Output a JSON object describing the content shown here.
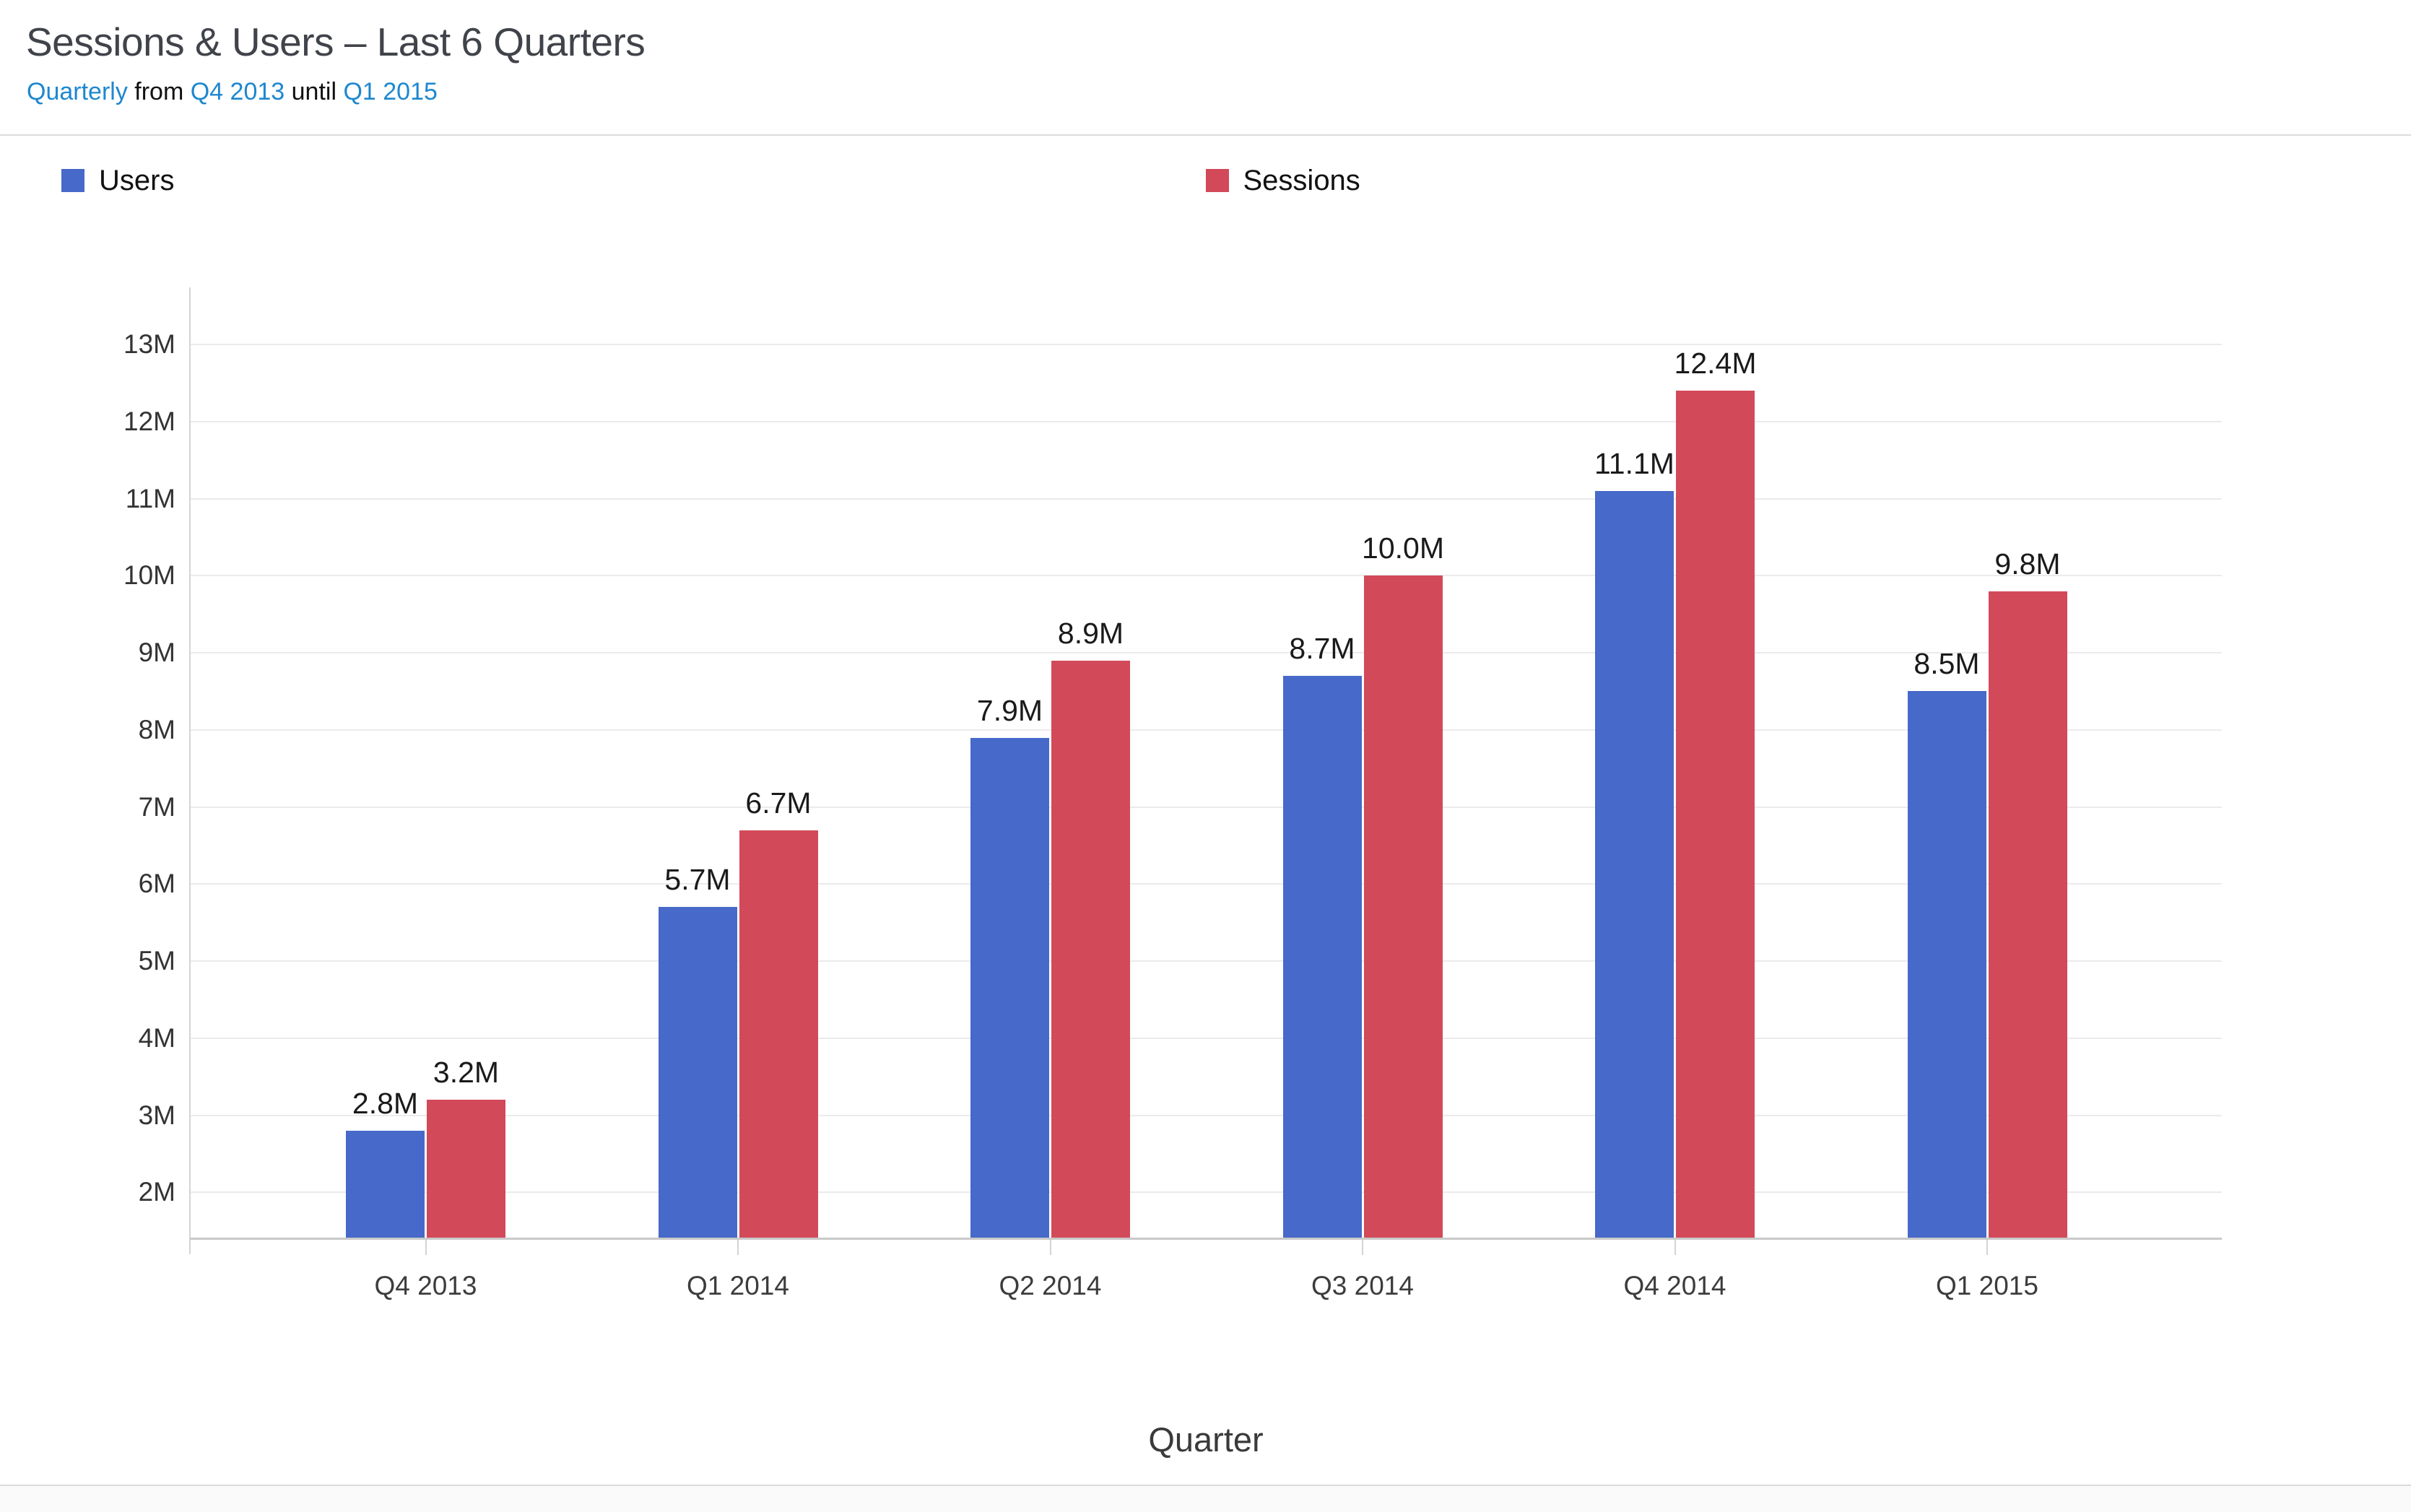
{
  "header": {
    "title": "Sessions & Users – Last 6 Quarters",
    "subtitle_parts": [
      {
        "text": "Quarterly"
      },
      {
        "text": " from "
      },
      {
        "text": "Q4 2013"
      },
      {
        "text": " until "
      },
      {
        "text": "Q1 2015"
      }
    ],
    "subtitle_link_color": "#1e87cf"
  },
  "legend": {
    "items": [
      {
        "label": "Users",
        "color": "#4769c9"
      },
      {
        "label": "Sessions",
        "color": "#d2495a"
      }
    ]
  },
  "chart_data": {
    "type": "bar",
    "title": "Sessions & Users – Last 6 Quarters",
    "subtitle": "Quarterly from Q4 2013 until Q1 2015",
    "categories": [
      "Q4 2013",
      "Q1 2014",
      "Q2 2014",
      "Q3 2014",
      "Q4 2014",
      "Q1 2015"
    ],
    "series": [
      {
        "name": "Users",
        "color": "#4769c9",
        "values": [
          2.8,
          5.7,
          7.9,
          8.7,
          11.1,
          8.5
        ],
        "labels": [
          "2.8M",
          "5.7M",
          "7.9M",
          "8.7M",
          "11.1M",
          "8.5M"
        ]
      },
      {
        "name": "Sessions",
        "color": "#d2495a",
        "values": [
          3.2,
          6.7,
          8.9,
          10.0,
          12.4,
          9.8
        ],
        "labels": [
          "3.2M",
          "6.7M",
          "8.9M",
          "10.0M",
          "12.4M",
          "9.8M"
        ]
      }
    ],
    "xlabel": "Quarter",
    "ylabel": "",
    "axis": {
      "min": 1.4,
      "max": 13.74,
      "tick_values": [
        2,
        3,
        4,
        5,
        6,
        7,
        8,
        9,
        10,
        11,
        12,
        13
      ],
      "tick_suffix": "M"
    },
    "grid": true,
    "legend_position": "top",
    "grid_color": "#ebebeb",
    "axis_line_color": "#d4d4d4",
    "baseline_color": "#c9c9c9"
  }
}
